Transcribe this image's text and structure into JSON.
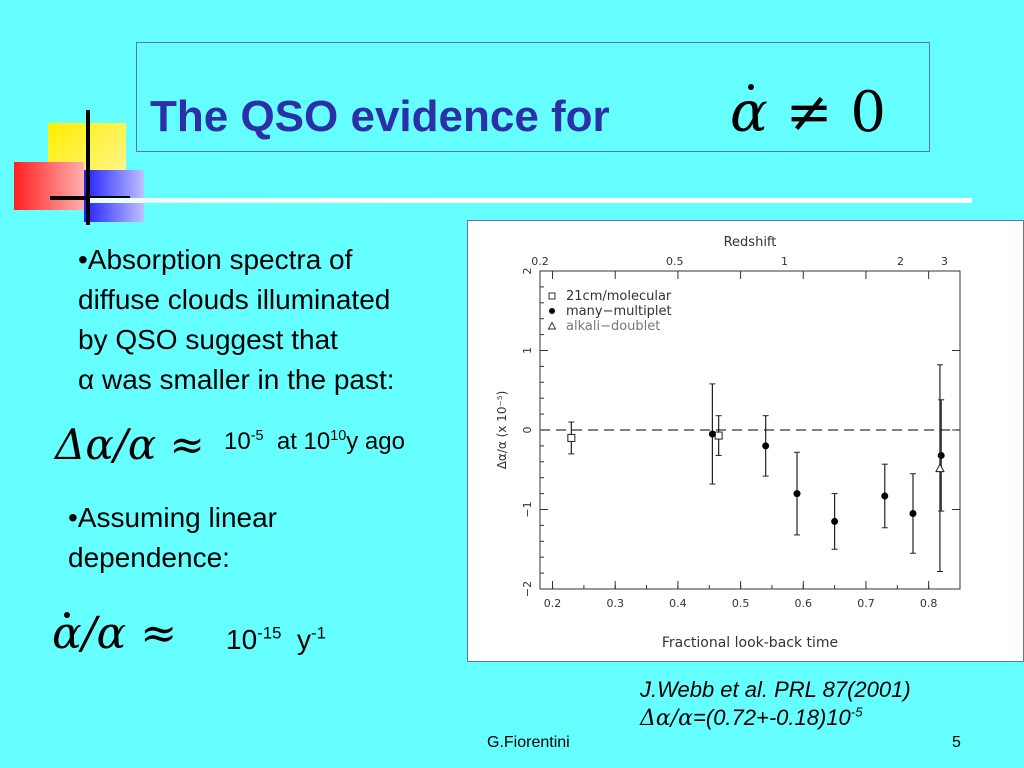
{
  "title": {
    "text": "The QSO evidence for",
    "math_rhs": "≠ 0"
  },
  "bullets": {
    "b1_lines": [
      "•Absorption spectra of",
      "diffuse clouds illuminated",
      "by QSO suggest that",
      "α was smaller in the past:"
    ],
    "b2_lines": [
      "•Assuming linear",
      "dependence:"
    ]
  },
  "eq1": {
    "lhs": "Δα/α ≈",
    "rhs_base": "10",
    "rhs_exp": "-5",
    "at": "at 10",
    "at_exp": "10",
    "ago": "y ago"
  },
  "eq2": {
    "lhs": "/α ≈",
    "rhs_base": "10",
    "rhs_exp": "-15",
    "unit": "y",
    "unit_exp": "-1"
  },
  "reference": {
    "line1": "J.Webb et al. PRL 87(2001)",
    "line2_prefix": "Δα/α",
    "line2": "=(0.72+-0.18)10",
    "line2_exp": "-5"
  },
  "footer": {
    "author": "G.Fiorentini",
    "page": "5"
  },
  "chart_data": {
    "type": "scatter",
    "title": "Redshift",
    "xlabel": "Fractional look-back time",
    "ylabel": "Δα/α  (x 10⁻⁵)",
    "xlim": [
      0.18,
      0.85
    ],
    "ylim": [
      -2,
      2
    ],
    "x_ticks": [
      "0.2",
      "0.3",
      "0.4",
      "0.5",
      "0.6",
      "0.7",
      "0.8"
    ],
    "y_ticks": [
      "−2",
      "−1",
      "0",
      "1",
      "2"
    ],
    "top_ticks": [
      {
        "label": "0.2",
        "x": 0.18
      },
      {
        "label": "0.5",
        "x": 0.395
      },
      {
        "label": "1",
        "x": 0.57
      },
      {
        "label": "2",
        "x": 0.755
      },
      {
        "label": "3",
        "x": 0.825
      }
    ],
    "legend": [
      "21cm/molecular",
      "many−multiplet",
      "alkali−doublet"
    ],
    "legend_position": "top-left",
    "series": [
      {
        "name": "21cm/molecular",
        "marker": "square",
        "points": [
          {
            "x": 0.23,
            "y": -0.1,
            "err": 0.2
          },
          {
            "x": 0.465,
            "y": -0.07,
            "err": 0.25
          }
        ]
      },
      {
        "name": "many−multiplet",
        "marker": "circle",
        "points": [
          {
            "x": 0.455,
            "y": -0.05,
            "err": 0.63
          },
          {
            "x": 0.54,
            "y": -0.2,
            "err": 0.38
          },
          {
            "x": 0.59,
            "y": -0.8,
            "err": 0.52
          },
          {
            "x": 0.65,
            "y": -1.15,
            "err": 0.35
          },
          {
            "x": 0.73,
            "y": -0.83,
            "err": 0.4
          },
          {
            "x": 0.775,
            "y": -1.05,
            "err": 0.5
          },
          {
            "x": 0.82,
            "y": -0.32,
            "err": 0.7
          }
        ]
      },
      {
        "name": "alkali−doublet",
        "marker": "triangle",
        "points": [
          {
            "x": 0.818,
            "y": -0.48,
            "err": 1.3
          }
        ]
      }
    ]
  }
}
